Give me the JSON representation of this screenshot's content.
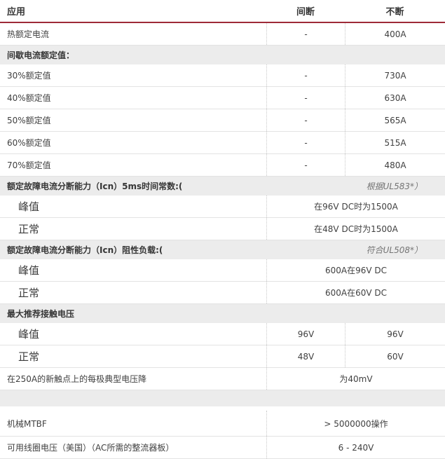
{
  "colors": {
    "accent": "#9e2a38",
    "section_bg": "#ececec"
  },
  "table": {
    "columns": {
      "col1": "应用",
      "col2": "间断",
      "col3": "不断"
    },
    "rows": [
      {
        "type": "row",
        "label": "热额定电流",
        "v1": "-",
        "v2": "400A"
      },
      {
        "type": "section",
        "label": "间歇电流额定值：",
        "note": ""
      },
      {
        "type": "row",
        "label": "30%额定值",
        "v1": "-",
        "v2": "730A"
      },
      {
        "type": "row",
        "label": "40%额定值",
        "v1": "-",
        "v2": "630A"
      },
      {
        "type": "row",
        "label": "50%额定值",
        "v1": "-",
        "v2": "565A"
      },
      {
        "type": "row",
        "label": "60%额定值",
        "v1": "-",
        "v2": "515A"
      },
      {
        "type": "row",
        "label": "70%额定值",
        "v1": "-",
        "v2": "480A"
      },
      {
        "type": "section",
        "label": "额定故障电流分断能力（Icn）5ms时间常数:(",
        "note": "根据UL583*）"
      },
      {
        "type": "subrow",
        "label": "峰值",
        "span": "在96V DC时为1500A"
      },
      {
        "type": "subrow",
        "label": "正常",
        "span": "在48V DC时为1500A"
      },
      {
        "type": "section",
        "label": "额定故障电流分断能力（Icn）阻性负载:(",
        "note": "符合UL508*）"
      },
      {
        "type": "subrow",
        "label": "峰值",
        "span": "600A在96V DC"
      },
      {
        "type": "subrow",
        "label": "正常",
        "span": "600A在60V DC"
      },
      {
        "type": "section",
        "label": "最大推荐接触电压",
        "note": ""
      },
      {
        "type": "subrow2",
        "label": "峰值",
        "v1": "96V",
        "v2": "96V"
      },
      {
        "type": "subrow2",
        "label": "正常",
        "v1": "48V",
        "v2": "60V"
      },
      {
        "type": "spanrow",
        "label": "在250A的新触点上的每极典型电压降",
        "span": "为40mV"
      },
      {
        "type": "blank"
      },
      {
        "type": "spanrow",
        "label": "机械MTBF",
        "span": "> 5000000操作"
      },
      {
        "type": "spanrow",
        "label": "可用线圈电压（美国）（AC所需的整流器板）",
        "span": "6 - 240V"
      }
    ]
  }
}
